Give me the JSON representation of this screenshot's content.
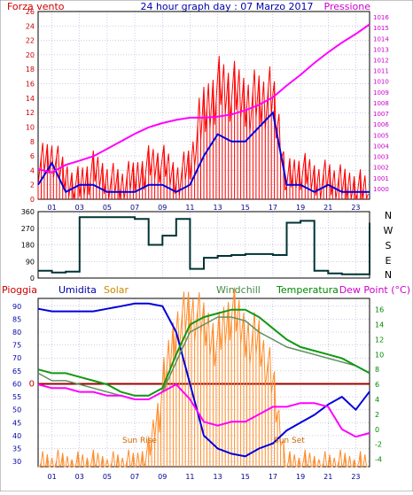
{
  "header": {
    "left_label": "Forza vento",
    "center_title": "24 hour graph day : 07 Marzo 2017",
    "right_label": "Pressione"
  },
  "compass": [
    "N",
    "W",
    "S",
    "E",
    "N"
  ],
  "bottom_header": {
    "pioggia": "Pioggia",
    "umidita": "Umidita",
    "solar": "Solar",
    "windchill": "Windchill",
    "temperatura": "Temperatura",
    "dewpoint": "Dew Point (°C)"
  },
  "annotations": {
    "sunrise": "Sun Rise",
    "sunset": "Sun Set"
  },
  "colors": {
    "wind": "#ff0000",
    "wind_avg": "#0000dd",
    "pressure": "#ff00ff",
    "direction": "#003333",
    "humidity": "#0000dd",
    "solar": "#ff8c2a",
    "windchill": "#5f8f5f",
    "temperature": "#119911",
    "dewpoint": "#ff00ff",
    "rain": "#990000",
    "axis_left": "#cc0000",
    "axis_right": "#cc00cc",
    "grid": "#9999cc"
  },
  "chart_data": [
    {
      "type": "line",
      "title": "24 hour graph day : 07 Marzo 2017",
      "x_ticks": [
        "01",
        "03",
        "05",
        "07",
        "09",
        "11",
        "13",
        "15",
        "17",
        "19",
        "21",
        "23"
      ],
      "y_left_ticks": [
        "0",
        "2",
        "4",
        "6",
        "8",
        "10",
        "12",
        "14",
        "16",
        "18",
        "20",
        "22",
        "24",
        "26"
      ],
      "y_left_range": [
        0,
        26
      ],
      "y_right_ticks": [
        "1000",
        "1001",
        "1002",
        "1003",
        "1004",
        "1005",
        "1006",
        "1007",
        "1008",
        "1009",
        "1010",
        "1011",
        "1012",
        "1013",
        "1014",
        "1015",
        "1016"
      ],
      "y_right_range": [
        999,
        1016.5
      ],
      "x": [
        0,
        1,
        2,
        3,
        4,
        5,
        6,
        7,
        8,
        9,
        10,
        11,
        12,
        13,
        14,
        15,
        16,
        17,
        18,
        19,
        20,
        21,
        22,
        23,
        24
      ],
      "series": [
        {
          "name": "Forza vento",
          "axis": "left",
          "values": [
            5,
            6,
            3,
            2,
            4,
            3,
            2,
            3,
            5,
            5,
            3,
            5,
            12,
            16,
            15,
            14,
            14,
            14,
            3,
            4,
            3,
            3,
            2,
            2,
            1
          ]
        },
        {
          "name": "",
          "axis": "left",
          "values": [
            2,
            5,
            1,
            2,
            2,
            1,
            1,
            1,
            2,
            2,
            1,
            2,
            6,
            9,
            8,
            8,
            10,
            12,
            2,
            2,
            1,
            2,
            1,
            1,
            1
          ]
        },
        {
          "name": "Pressione",
          "axis": "right",
          "values": [
            1001.8,
            1001.5,
            1002.2,
            1002.6,
            1003.0,
            1003.7,
            1004.4,
            1005.1,
            1005.7,
            1006.1,
            1006.4,
            1006.6,
            1006.6,
            1006.7,
            1006.9,
            1007.3,
            1007.8,
            1008.5,
            1009.6,
            1010.6,
            1011.7,
            1012.7,
            1013.6,
            1014.4,
            1015.3
          ]
        }
      ]
    },
    {
      "type": "line",
      "y_ticks": [
        "0",
        "90",
        "180",
        "270",
        "360"
      ],
      "y_range": [
        0,
        360
      ],
      "x": [
        0,
        1,
        2,
        3,
        4,
        5,
        6,
        7,
        8,
        9,
        10,
        11,
        12,
        13,
        14,
        15,
        16,
        17,
        18,
        19,
        20,
        21,
        22,
        23,
        24
      ],
      "series": [
        {
          "name": "",
          "values": [
            40,
            30,
            35,
            330,
            330,
            330,
            330,
            320,
            180,
            230,
            320,
            50,
            110,
            120,
            125,
            130,
            130,
            125,
            300,
            310,
            40,
            25,
            20,
            20,
            300
          ]
        }
      ]
    },
    {
      "type": "line",
      "y_left_ticks": [
        "30",
        "35",
        "40",
        "45",
        "50",
        "55",
        "60",
        "65",
        "70",
        "75",
        "80",
        "85",
        "90"
      ],
      "y_left_range": [
        28,
        93
      ],
      "y_right_ticks": [
        "-4",
        "-2",
        "0",
        "2",
        "4",
        "6",
        "8",
        "10",
        "12",
        "14",
        "16"
      ],
      "y_right_range": [
        -5,
        17.5
      ],
      "rain_label": "0",
      "x": [
        0,
        1,
        2,
        3,
        4,
        5,
        6,
        7,
        8,
        9,
        10,
        11,
        12,
        13,
        14,
        15,
        16,
        17,
        18,
        19,
        20,
        21,
        22,
        23,
        24
      ],
      "series": [
        {
          "name": "Umidita",
          "axis": "left",
          "values": [
            89,
            88,
            88,
            88,
            88,
            89,
            90,
            91,
            91,
            90,
            80,
            60,
            40,
            35,
            33,
            32,
            35,
            37,
            42,
            45,
            48,
            52,
            55,
            50,
            57
          ]
        },
        {
          "name": "Solar",
          "axis": "right",
          "values": [
            -5,
            -5,
            -5,
            -5,
            -5,
            -5,
            -5,
            -5,
            -3,
            5,
            14,
            16,
            14,
            12,
            16,
            13,
            12,
            6,
            -5,
            -5,
            -5,
            -5,
            -5,
            -5,
            -5
          ]
        },
        {
          "name": "Windchill",
          "axis": "right",
          "values": [
            7.5,
            6.5,
            6.5,
            6,
            5.5,
            5,
            4.5,
            4,
            4,
            5,
            9,
            13,
            14,
            15,
            15,
            14.5,
            13,
            12,
            11,
            10.5,
            10,
            9.5,
            9,
            8.5,
            7.5
          ]
        },
        {
          "name": "Temperatura",
          "axis": "right",
          "values": [
            8,
            7.5,
            7.5,
            7,
            6.5,
            6,
            5,
            4.5,
            4.5,
            5.5,
            10,
            14,
            15,
            15.5,
            16,
            16,
            15,
            13.5,
            12,
            11,
            10.5,
            10,
            9.5,
            8.5,
            7.5
          ]
        },
        {
          "name": "Dew Point (°C)",
          "axis": "right",
          "values": [
            6,
            5.5,
            5.5,
            5,
            5,
            4.5,
            4.5,
            4,
            4,
            5,
            6,
            4,
            1,
            0.5,
            1,
            1,
            2,
            3,
            3,
            3.5,
            3.5,
            3,
            0,
            -1,
            -0.5
          ]
        }
      ]
    }
  ]
}
